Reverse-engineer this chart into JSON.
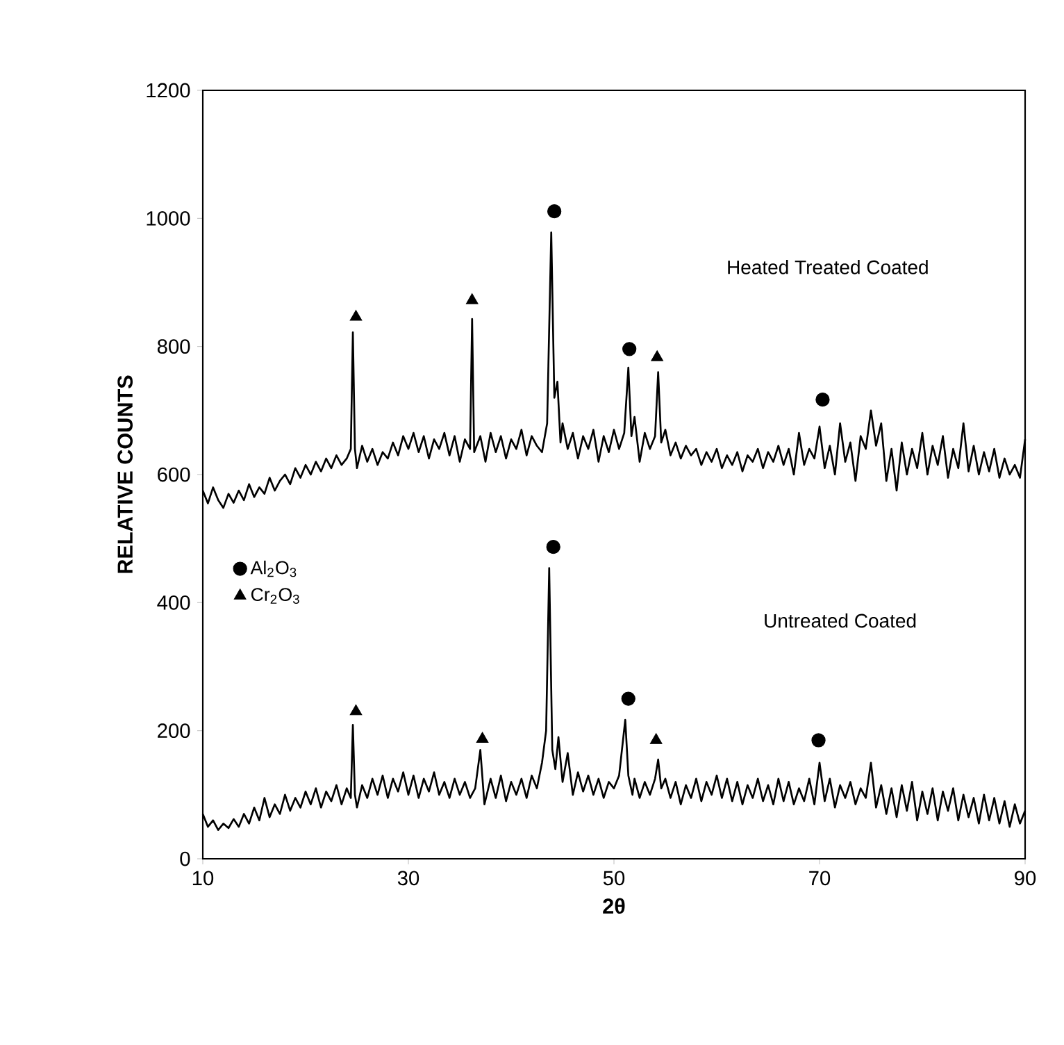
{
  "chart_data": {
    "type": "line",
    "xlabel": "**2θ**",
    "ylabel": "**RELATIVE COUNTS**",
    "xlim": [
      10,
      90
    ],
    "xticks": [
      10,
      30,
      50,
      70,
      90
    ],
    "ylim": [
      0,
      1200
    ],
    "yticks": [
      0,
      200,
      400,
      600,
      800,
      1000,
      1200
    ],
    "grid": false,
    "legend": "left",
    "annotations": [
      "Heated Treated Coated",
      "Untreated Coated"
    ],
    "series": [
      {
        "color": "#000000",
        "marker": "none",
        "x": [
          10,
          10.5,
          11,
          11.5,
          12,
          12.5,
          13,
          13.5,
          14,
          14.5,
          15,
          15.5,
          16,
          16.5,
          17,
          17.5,
          18,
          18.5,
          19,
          19.5,
          20,
          20.5,
          21,
          21.5,
          22,
          22.5,
          23,
          23.5,
          24,
          24.4,
          24.6,
          24.8,
          25,
          25.5,
          26,
          26.5,
          27,
          27.5,
          28,
          28.5,
          29,
          29.5,
          30,
          30.5,
          31,
          31.5,
          32,
          32.5,
          33,
          33.5,
          34,
          34.5,
          35,
          35.5,
          36,
          36.2,
          36.4,
          37,
          37.5,
          38,
          38.5,
          39,
          39.5,
          40,
          40.5,
          41,
          41.5,
          42,
          42.5,
          43,
          43.5,
          43.9,
          44.2,
          44.5,
          44.8,
          45,
          45.5,
          46,
          46.5,
          47,
          47.5,
          48,
          48.5,
          49,
          49.5,
          50,
          50.5,
          51,
          51.4,
          51.7,
          52,
          52.5,
          53,
          53.5,
          54,
          54.3,
          54.6,
          55,
          55.5,
          56,
          56.5,
          57,
          57.5,
          58,
          58.5,
          59,
          59.5,
          60,
          60.5,
          61,
          61.5,
          62,
          62.5,
          63,
          63.5,
          64,
          64.5,
          65,
          65.5,
          66,
          66.5,
          67,
          67.5,
          68,
          68.5,
          69,
          69.5,
          70,
          70.5,
          71,
          71.5,
          72,
          72.5,
          73,
          73.5,
          74,
          74.5,
          75,
          75.5,
          76,
          76.5,
          77,
          77.5,
          78,
          78.5,
          79,
          79.5,
          80,
          80.5,
          81,
          81.5,
          82,
          82.5,
          83,
          83.5,
          84,
          84.5,
          85,
          85.5,
          86,
          86.5,
          87,
          87.5,
          88,
          88.5,
          89,
          89.5,
          90
        ],
        "values": [
          575,
          555,
          580,
          560,
          548,
          570,
          556,
          575,
          560,
          585,
          565,
          580,
          570,
          595,
          575,
          590,
          600,
          585,
          610,
          595,
          615,
          600,
          620,
          605,
          625,
          610,
          630,
          615,
          625,
          640,
          822,
          640,
          610,
          645,
          620,
          640,
          615,
          635,
          625,
          650,
          630,
          660,
          640,
          665,
          635,
          660,
          625,
          655,
          640,
          665,
          630,
          660,
          620,
          655,
          640,
          843,
          635,
          660,
          620,
          665,
          635,
          660,
          625,
          655,
          640,
          670,
          630,
          660,
          645,
          635,
          680,
          978,
          720,
          745,
          650,
          680,
          640,
          665,
          625,
          660,
          640,
          670,
          620,
          660,
          635,
          670,
          640,
          665,
          767,
          660,
          690,
          620,
          665,
          640,
          660,
          760,
          650,
          670,
          630,
          650,
          625,
          645,
          630,
          640,
          615,
          635,
          620,
          640,
          610,
          630,
          615,
          635,
          605,
          630,
          620,
          640,
          610,
          635,
          620,
          645,
          615,
          640,
          600,
          665,
          615,
          640,
          625,
          675,
          610,
          645,
          600,
          680,
          620,
          650,
          590,
          660,
          640,
          700,
          645,
          680,
          590,
          640,
          575,
          650,
          600,
          640,
          610,
          665,
          600,
          645,
          615,
          660,
          595,
          640,
          610,
          680,
          605,
          645,
          600,
          635,
          605,
          640,
          595,
          625,
          600,
          615,
          595,
          655
        ]
      },
      {
        "color": "#000000",
        "marker": "none",
        "x": [
          10,
          10.5,
          11,
          11.5,
          12,
          12.5,
          13,
          13.5,
          14,
          14.5,
          15,
          15.5,
          16,
          16.5,
          17,
          17.5,
          18,
          18.5,
          19,
          19.5,
          20,
          20.5,
          21,
          21.5,
          22,
          22.5,
          23,
          23.5,
          24,
          24.4,
          24.6,
          24.8,
          25,
          25.5,
          26,
          26.5,
          27,
          27.5,
          28,
          28.5,
          29,
          29.5,
          30,
          30.5,
          31,
          31.5,
          32,
          32.5,
          33,
          33.5,
          34,
          34.5,
          35,
          35.5,
          36,
          36.5,
          37,
          37.4,
          38,
          38.5,
          39,
          39.5,
          40,
          40.5,
          41,
          41.5,
          42,
          42.5,
          43,
          43.4,
          43.7,
          44,
          44.3,
          44.6,
          45,
          45.5,
          46,
          46.5,
          47,
          47.5,
          48,
          48.5,
          49,
          49.5,
          50,
          50.5,
          51.1,
          51.4,
          51.8,
          52,
          52.5,
          53,
          53.5,
          54,
          54.3,
          54.6,
          55,
          55.5,
          56,
          56.5,
          57,
          57.5,
          58,
          58.5,
          59,
          59.5,
          60,
          60.5,
          61,
          61.5,
          62,
          62.5,
          63,
          63.5,
          64,
          64.5,
          65,
          65.5,
          66,
          66.5,
          67,
          67.5,
          68,
          68.5,
          69,
          69.5,
          70,
          70.5,
          71,
          71.5,
          72,
          72.5,
          73,
          73.5,
          74,
          74.5,
          75,
          75.5,
          76,
          76.5,
          77,
          77.5,
          78,
          78.5,
          79,
          79.5,
          80,
          80.5,
          81,
          81.5,
          82,
          82.5,
          83,
          83.5,
          84,
          84.5,
          85,
          85.5,
          86,
          86.5,
          87,
          87.5,
          88,
          88.5,
          89,
          89.5,
          90
        ],
        "values": [
          70,
          50,
          60,
          45,
          55,
          48,
          62,
          50,
          70,
          55,
          80,
          60,
          95,
          65,
          85,
          70,
          100,
          75,
          95,
          80,
          105,
          85,
          110,
          80,
          105,
          90,
          115,
          85,
          110,
          95,
          209,
          100,
          80,
          115,
          95,
          125,
          100,
          130,
          95,
          125,
          105,
          135,
          100,
          130,
          95,
          125,
          105,
          135,
          100,
          120,
          95,
          125,
          100,
          120,
          95,
          110,
          170,
          85,
          125,
          95,
          130,
          90,
          120,
          100,
          125,
          95,
          130,
          110,
          150,
          200,
          454,
          170,
          140,
          190,
          120,
          165,
          100,
          135,
          105,
          130,
          100,
          125,
          95,
          120,
          110,
          130,
          217,
          130,
          100,
          125,
          95,
          120,
          100,
          125,
          155,
          110,
          125,
          95,
          120,
          85,
          115,
          95,
          125,
          90,
          120,
          100,
          130,
          95,
          125,
          90,
          120,
          85,
          115,
          95,
          125,
          90,
          115,
          85,
          125,
          90,
          120,
          85,
          110,
          90,
          125,
          85,
          150,
          90,
          125,
          80,
          115,
          95,
          120,
          85,
          110,
          95,
          150,
          80,
          115,
          70,
          110,
          65,
          115,
          75,
          120,
          60,
          105,
          70,
          110,
          60,
          105,
          75,
          110,
          60,
          100,
          65,
          95,
          55,
          100,
          60,
          95,
          55,
          90,
          50,
          85,
          55,
          75
        ]
      },
      {
        "type": "scatter",
        "name": "Al$_{2}$O$_{3}$",
        "color": "#000000",
        "marker": "circle",
        "x": [
          44.2,
          51.5,
          70.3,
          44.1,
          51.4,
          69.9
        ],
        "values": [
          1011,
          796,
          717,
          487,
          250,
          185
        ]
      },
      {
        "type": "scatter",
        "name": "Cr$_{2}$O$_{3}$",
        "color": "#000000",
        "marker": "triangle",
        "x": [
          24.9,
          36.2,
          54.2,
          24.9,
          37.2,
          54.1
        ],
        "values": [
          846,
          872,
          783,
          230,
          187,
          185
        ]
      }
    ]
  }
}
